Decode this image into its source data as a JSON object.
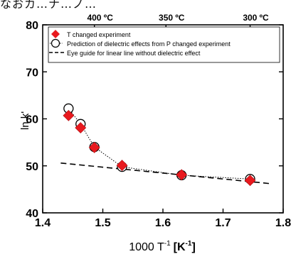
{
  "caption": {
    "top_text": "なおカ…ナ…ノ…"
  },
  "chart_data": {
    "type": "scatter",
    "xlabel_main": "1000 T",
    "xlabel_sup": "-1",
    "xlabel_unit": "[K",
    "xlabel_unit_sup": "-1",
    "xlabel_close": "]",
    "ylabel": "ln k'",
    "xlim": [
      1.4,
      1.8
    ],
    "ylim": [
      40,
      80
    ],
    "x_ticks": [
      "1.4",
      "1.5",
      "1.6",
      "1.7",
      "1.8"
    ],
    "x_tick_values": [
      1.4,
      1.5,
      1.6,
      1.7,
      1.8
    ],
    "y_ticks": [
      "40",
      "50",
      "60",
      "70",
      "80"
    ],
    "y_tick_values": [
      40,
      50,
      60,
      70,
      80
    ],
    "top_axis_ticks": [
      {
        "label": "400 ºC",
        "x": 1.486
      },
      {
        "label": "350 ºC",
        "x": 1.605
      },
      {
        "label": "300 ºC",
        "x": 1.745
      }
    ],
    "legend": {
      "placement": "top-left",
      "entries": [
        "T changed experiment",
        "Prediction of dielectric effects from P changed experiment",
        "Eye guide for linear line without dielectric effect"
      ]
    },
    "series": [
      {
        "name": "T changed experiment",
        "marker": "diamond",
        "color": "#e8191e",
        "x": [
          1.443,
          1.463,
          1.486,
          1.532,
          1.631,
          1.745
        ],
        "y": [
          60.7,
          58.1,
          53.9,
          50.1,
          48.1,
          46.9
        ]
      },
      {
        "name": "Prediction of dielectric effects from P changed experiment",
        "marker": "open-circle",
        "color": "#000000",
        "x": [
          1.443,
          1.463,
          1.486,
          1.532,
          1.631,
          1.745
        ],
        "y": [
          62.2,
          58.9,
          54.0,
          49.8,
          48.0,
          47.2
        ]
      },
      {
        "name": "Eye guide for linear line without dielectric effect",
        "marker": "dashed-line",
        "color": "#000000",
        "x": [
          1.43,
          1.78
        ],
        "y": [
          50.6,
          46.2
        ]
      }
    ]
  }
}
